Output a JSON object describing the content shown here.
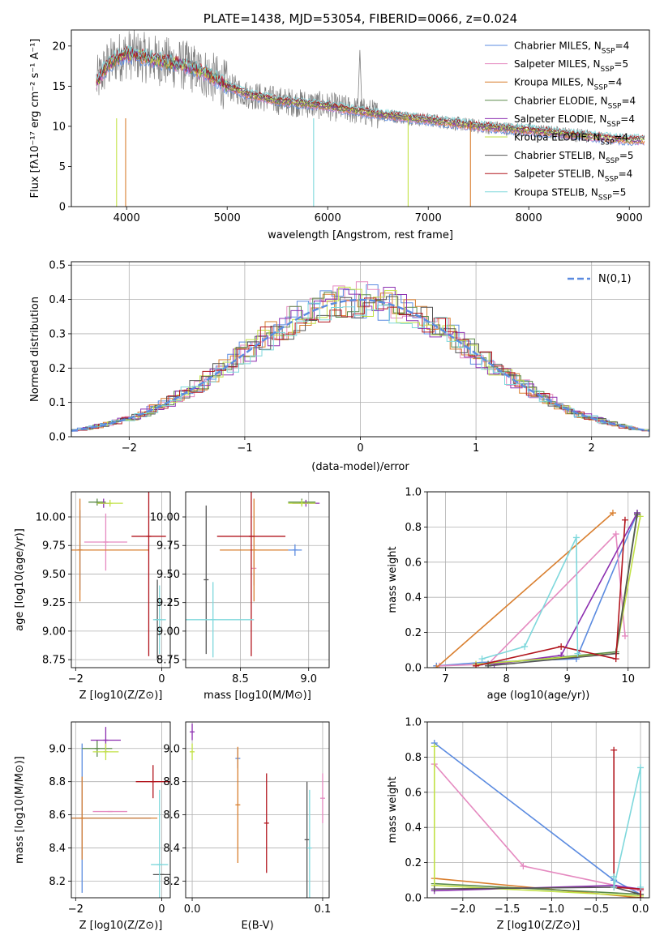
{
  "series": [
    {
      "label": "Chabrier MILES, N$_{SSP}$=4",
      "legend": "Chabrier MILES, N",
      "n": "4",
      "color": "#5b8be0"
    },
    {
      "label": "Salpeter MILES, N$_{SSP}$=5",
      "legend": "Salpeter MILES, N",
      "n": "5",
      "color": "#e58ac0"
    },
    {
      "label": "Kroupa MILES, N$_{SSP}$=4",
      "legend": "Kroupa MILES, N",
      "n": "4",
      "color": "#d97f2f"
    },
    {
      "label": "Chabrier ELODIE, N$_{SSP}$=4",
      "legend": "Chabrier ELODIE, N",
      "n": "4",
      "color": "#5c8c4a"
    },
    {
      "label": "Salpeter ELODIE, N$_{SSP}$=4",
      "legend": "Salpeter ELODIE, N",
      "n": "4",
      "color": "#8c2fb0"
    },
    {
      "label": "Kroupa ELODIE, N$_{SSP}$=4",
      "legend": "Kroupa ELODIE, N",
      "n": "4",
      "color": "#c2e246"
    },
    {
      "label": "Chabrier STELIB, N$_{SSP}$=5",
      "legend": "Chabrier STELIB, N",
      "n": "5",
      "color": "#555555"
    },
    {
      "label": "Salpeter STELIB, N$_{SSP}$=4",
      "legend": "Salpeter STELIB, N",
      "n": "4",
      "color": "#b2161e"
    },
    {
      "label": "Kroupa STELIB, N$_{SSP}$=5",
      "legend": "Kroupa STELIB, N",
      "n": "5",
      "color": "#7fd8dc"
    }
  ],
  "legend_sub": "SSP",
  "chart_data": [
    {
      "id": "spectrum",
      "type": "line",
      "title": "PLATE=1438, MJD=53054, FIBERID=0066, z=0.024",
      "xlabel": "wavelength [Angstrom, rest frame]",
      "ylabel": "Flux [fλ10⁻¹⁷ erg cm⁻² s⁻¹ A⁻¹]",
      "xlim": [
        3450,
        9200
      ],
      "ylim": [
        0,
        22
      ],
      "xticks": [
        4000,
        5000,
        6000,
        7000,
        8000,
        9000
      ],
      "yticks": [
        0,
        5,
        10,
        15,
        20
      ],
      "observed_color": "#808080",
      "continuum": {
        "x": [
          3700,
          3800,
          3900,
          4000,
          4100,
          4200,
          4400,
          4600,
          4800,
          5000,
          5200,
          5500,
          6000,
          6500,
          7000,
          7500,
          8000,
          8500,
          9000
        ],
        "y": [
          15.5,
          17.5,
          18.5,
          19.0,
          18.8,
          18.5,
          18.0,
          17.5,
          16.5,
          15.0,
          14.0,
          13.2,
          12.5,
          11.5,
          10.8,
          10.0,
          9.5,
          8.9,
          8.3
        ]
      },
      "drops": [
        3900,
        3990,
        5860,
        6800,
        7420
      ]
    },
    {
      "id": "residuals",
      "type": "histogram",
      "xlabel": "(data-model)/error",
      "ylabel": "Normed distribution",
      "xlim": [
        -2.5,
        2.5
      ],
      "ylim": [
        0,
        0.51
      ],
      "xticks": [
        -2,
        -1,
        0,
        1,
        2
      ],
      "yticks": [
        0.0,
        0.1,
        0.2,
        0.3,
        0.4,
        0.5
      ],
      "reference": {
        "label": "N(0,1)",
        "mean": 0,
        "sigma": 1,
        "color": "#5b8be0"
      },
      "bin_width": 0.1
    },
    {
      "id": "age-vs-Z",
      "type": "scatter",
      "xlabel": "Z [log10(Z/Z⊙)]",
      "ylabel": "age [log10(age/yr)]",
      "xlim": [
        -2.1,
        0.2
      ],
      "ylim": [
        8.68,
        10.22
      ],
      "xticks": [
        -2,
        0
      ],
      "yticks": [
        8.75,
        9.0,
        9.25,
        9.5,
        9.75,
        10.0
      ],
      "points": [
        {
          "series": 0,
          "x": -1.9,
          "y": 9.71,
          "ex": 0.0,
          "ey": 0.35
        },
        {
          "series": 1,
          "x": -1.3,
          "y": 9.78,
          "ex": 0.5,
          "ey": 0.25
        },
        {
          "series": 2,
          "x": -1.9,
          "y": 9.71,
          "ex": 1.6,
          "ey": 0.45
        },
        {
          "series": 3,
          "x": -1.5,
          "y": 10.13,
          "ex": 0.2,
          "ey": 0.03
        },
        {
          "series": 4,
          "x": -1.35,
          "y": 10.12,
          "ex": 0.15,
          "ey": 0.04
        },
        {
          "series": 5,
          "x": -1.2,
          "y": 10.12,
          "ex": 0.3,
          "ey": 0.03
        },
        {
          "series": 6,
          "x": -0.1,
          "y": 9.1,
          "ex": 0.0,
          "ey": 0.35
        },
        {
          "series": 7,
          "x": -0.3,
          "y": 9.83,
          "ex": 0.4,
          "ey": 1.05
        },
        {
          "series": 8,
          "x": -0.05,
          "y": 9.1,
          "ex": 0.15,
          "ey": 0.3
        }
      ]
    },
    {
      "id": "age-vs-mass",
      "type": "scatter",
      "xlabel": "mass [log10(M/M⊙)]",
      "ylabel": "",
      "xlim": [
        8.1,
        9.15
      ],
      "ylim": [
        8.68,
        10.22
      ],
      "xticks": [
        8.5,
        9.0
      ],
      "yticks": [
        8.75,
        9.0,
        9.25,
        9.5,
        9.75,
        10.0
      ],
      "points": [
        {
          "series": 0,
          "x": 8.9,
          "y": 9.71,
          "ex": 0.05,
          "ey": 0.05
        },
        {
          "series": 1,
          "x": 8.6,
          "y": 9.55,
          "ex": 0.0,
          "ey": 0.15
        },
        {
          "series": 2,
          "x": 8.6,
          "y": 9.71,
          "ex": 0.25,
          "ey": 0.45
        },
        {
          "series": 3,
          "x": 8.95,
          "y": 10.13,
          "ex": 0.1,
          "ey": 0.03
        },
        {
          "series": 4,
          "x": 8.98,
          "y": 10.12,
          "ex": 0.1,
          "ey": 0.03
        },
        {
          "series": 5,
          "x": 8.95,
          "y": 10.12,
          "ex": 0.1,
          "ey": 0.03
        },
        {
          "series": 6,
          "x": 8.25,
          "y": 9.45,
          "ex": 0.0,
          "ey": 0.65
        },
        {
          "series": 7,
          "x": 8.58,
          "y": 9.83,
          "ex": 0.25,
          "ey": 1.05
        },
        {
          "series": 8,
          "x": 8.3,
          "y": 9.1,
          "ex": 0.3,
          "ey": 0.33
        }
      ]
    },
    {
      "id": "weight-vs-age",
      "type": "line",
      "xlabel": "age (log10(age/yr))",
      "ylabel": "mass weight",
      "xlim": [
        6.7,
        10.35
      ],
      "ylim": [
        0,
        1.0
      ],
      "xticks": [
        7,
        8,
        9,
        10
      ],
      "yticks": [
        0.0,
        0.2,
        0.4,
        0.6,
        0.8,
        1.0
      ],
      "lines": [
        {
          "series": 0,
          "x": [
            6.85,
            7.6,
            9.15,
            10.15
          ],
          "y": [
            0.01,
            0.03,
            0.05,
            0.88
          ]
        },
        {
          "series": 1,
          "x": [
            6.9,
            7.7,
            9.8,
            9.95
          ],
          "y": [
            0.01,
            0.02,
            0.76,
            0.18
          ]
        },
        {
          "series": 2,
          "x": [
            6.85,
            9.75
          ],
          "y": [
            0.0,
            0.88
          ]
        },
        {
          "series": 3,
          "x": [
            7.7,
            9.8,
            10.15
          ],
          "y": [
            0.02,
            0.09,
            0.88
          ]
        },
        {
          "series": 4,
          "x": [
            7.8,
            8.9,
            10.15
          ],
          "y": [
            0.02,
            0.07,
            0.88
          ]
        },
        {
          "series": 5,
          "x": [
            7.5,
            9.8,
            10.2
          ],
          "y": [
            0.02,
            0.08,
            0.86
          ]
        },
        {
          "series": 6,
          "x": [
            7.7,
            9.8,
            10.15
          ],
          "y": [
            0.01,
            0.08,
            0.87
          ]
        },
        {
          "series": 7,
          "x": [
            7.5,
            8.9,
            9.8,
            9.95
          ],
          "y": [
            0.01,
            0.12,
            0.05,
            0.84
          ]
        },
        {
          "series": 8,
          "x": [
            7.6,
            8.3,
            9.15,
            9.17
          ],
          "y": [
            0.05,
            0.12,
            0.74,
            0.08
          ]
        }
      ]
    },
    {
      "id": "mass-vs-Z",
      "type": "scatter",
      "xlabel": "Z [log10(Z/Z⊙)]",
      "ylabel": "mass [log10(M/M⊙)]",
      "xlim": [
        -2.1,
        0.2
      ],
      "ylim": [
        8.1,
        9.16
      ],
      "xticks": [
        -2,
        0
      ],
      "yticks": [
        8.2,
        8.4,
        8.6,
        8.8,
        9.0
      ],
      "points": [
        {
          "series": 0,
          "x": -1.85,
          "y": 8.58,
          "ex": 1.6,
          "ey": 0.45
        },
        {
          "series": 1,
          "x": -1.2,
          "y": 8.62,
          "ex": 0.4,
          "ey": 0.0
        },
        {
          "series": 2,
          "x": -1.85,
          "y": 8.58,
          "ex": 1.75,
          "ey": 0.25
        },
        {
          "series": 3,
          "x": -1.5,
          "y": 9.0,
          "ex": 0.35,
          "ey": 0.05
        },
        {
          "series": 4,
          "x": -1.3,
          "y": 9.05,
          "ex": 0.35,
          "ey": 0.08
        },
        {
          "series": 5,
          "x": -1.3,
          "y": 8.98,
          "ex": 0.3,
          "ey": 0.05
        },
        {
          "series": 6,
          "x": 0.0,
          "y": 8.24,
          "ex": 0.2,
          "ey": 0.0
        },
        {
          "series": 7,
          "x": -0.2,
          "y": 8.8,
          "ex": 0.4,
          "ey": 0.1
        },
        {
          "series": 8,
          "x": -0.05,
          "y": 8.3,
          "ex": 0.2,
          "ey": 0.45
        }
      ]
    },
    {
      "id": "mass-vs-EBV",
      "type": "scatter",
      "xlabel": "E(B-V)",
      "ylabel": "",
      "xlim": [
        -0.005,
        0.105
      ],
      "ylim": [
        8.1,
        9.16
      ],
      "xticks": [
        0.0,
        0.1
      ],
      "yticks": [
        8.2,
        8.4,
        8.6,
        8.8,
        9.0
      ],
      "points": [
        {
          "series": 0,
          "x": 0.035,
          "y": 8.94,
          "ex": 0.0,
          "ey": 0.06
        },
        {
          "series": 1,
          "x": 0.1,
          "y": 8.7,
          "ex": 0.0,
          "ey": 0.15
        },
        {
          "series": 2,
          "x": 0.035,
          "y": 8.66,
          "ex": 0.0,
          "ey": 0.35
        },
        {
          "series": 4,
          "x": 0.0,
          "y": 9.1,
          "ex": 0.0,
          "ey": 0.05
        },
        {
          "series": 5,
          "x": 0.0,
          "y": 8.98,
          "ex": 0.0,
          "ey": 0.05
        },
        {
          "series": 6,
          "x": 0.088,
          "y": 8.45,
          "ex": 0.0,
          "ey": 0.35
        },
        {
          "series": 7,
          "x": 0.057,
          "y": 8.55,
          "ex": 0.0,
          "ey": 0.3
        },
        {
          "series": 8,
          "x": 0.09,
          "y": 8.4,
          "ex": 0.0,
          "ey": 0.35
        }
      ]
    },
    {
      "id": "weight-vs-Z",
      "type": "line",
      "xlabel": "Z [log10(Z/Z⊙)]",
      "ylabel": "mass weight",
      "xlim": [
        -2.4,
        0.1
      ],
      "ylim": [
        0,
        1.0
      ],
      "xticks": [
        -2.0,
        -1.5,
        -1.0,
        -0.5,
        0.0
      ],
      "yticks": [
        0.0,
        0.2,
        0.4,
        0.6,
        0.8,
        1.0
      ],
      "lines": [
        {
          "series": 0,
          "x": [
            -2.32,
            -0.3,
            0.0
          ],
          "y": [
            0.88,
            0.1,
            0.02
          ]
        },
        {
          "series": 1,
          "x": [
            -2.32,
            -1.32,
            0.0,
            0.0
          ],
          "y": [
            0.76,
            0.18,
            0.04,
            0.02
          ]
        },
        {
          "series": 2,
          "x": [
            -2.32,
            0.0
          ],
          "y": [
            0.11,
            0.0
          ]
        },
        {
          "series": 3,
          "x": [
            -2.32,
            0.0
          ],
          "y": [
            0.08,
            0.02
          ]
        },
        {
          "series": 4,
          "x": [
            -2.32,
            -0.3,
            0.0
          ],
          "y": [
            0.04,
            0.07,
            0.05
          ]
        },
        {
          "series": 5,
          "x": [
            -2.32,
            -2.32,
            0.0
          ],
          "y": [
            0.86,
            0.07,
            0.01
          ]
        },
        {
          "series": 6,
          "x": [
            -2.32,
            -0.3,
            0.0
          ],
          "y": [
            0.05,
            0.06,
            0.02
          ]
        },
        {
          "series": 7,
          "x": [
            -0.3,
            -0.3,
            0.0,
            0.0
          ],
          "y": [
            0.84,
            0.06,
            0.05,
            0.0
          ]
        },
        {
          "series": 8,
          "x": [
            -0.3,
            -0.3,
            0.0,
            0.0
          ],
          "y": [
            0.12,
            0.06,
            0.74,
            0.06
          ]
        }
      ]
    }
  ]
}
